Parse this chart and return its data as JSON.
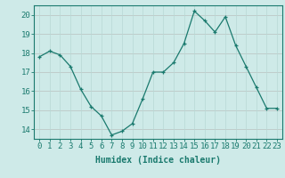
{
  "x": [
    0,
    1,
    2,
    3,
    4,
    5,
    6,
    7,
    8,
    9,
    10,
    11,
    12,
    13,
    14,
    15,
    16,
    17,
    18,
    19,
    20,
    21,
    22,
    23
  ],
  "y": [
    17.8,
    18.1,
    17.9,
    17.3,
    16.1,
    15.2,
    14.7,
    13.7,
    13.9,
    14.3,
    15.6,
    17.0,
    17.0,
    17.5,
    18.5,
    20.2,
    19.7,
    19.1,
    19.9,
    18.4,
    17.3,
    16.2,
    15.1,
    15.1
  ],
  "xlabel": "Humidex (Indice chaleur)",
  "ylim": [
    13.5,
    20.5
  ],
  "xlim": [
    -0.5,
    23.5
  ],
  "yticks": [
    14,
    15,
    16,
    17,
    18,
    19,
    20
  ],
  "xticks": [
    0,
    1,
    2,
    3,
    4,
    5,
    6,
    7,
    8,
    9,
    10,
    11,
    12,
    13,
    14,
    15,
    16,
    17,
    18,
    19,
    20,
    21,
    22,
    23
  ],
  "line_color": "#1a7a6e",
  "marker_color": "#1a7a6e",
  "bg_color": "#ceeae8",
  "grid_color": "#b8d8d5",
  "axis_color": "#1a7a6e",
  "xlabel_fontsize": 7,
  "tick_fontsize": 6.5
}
